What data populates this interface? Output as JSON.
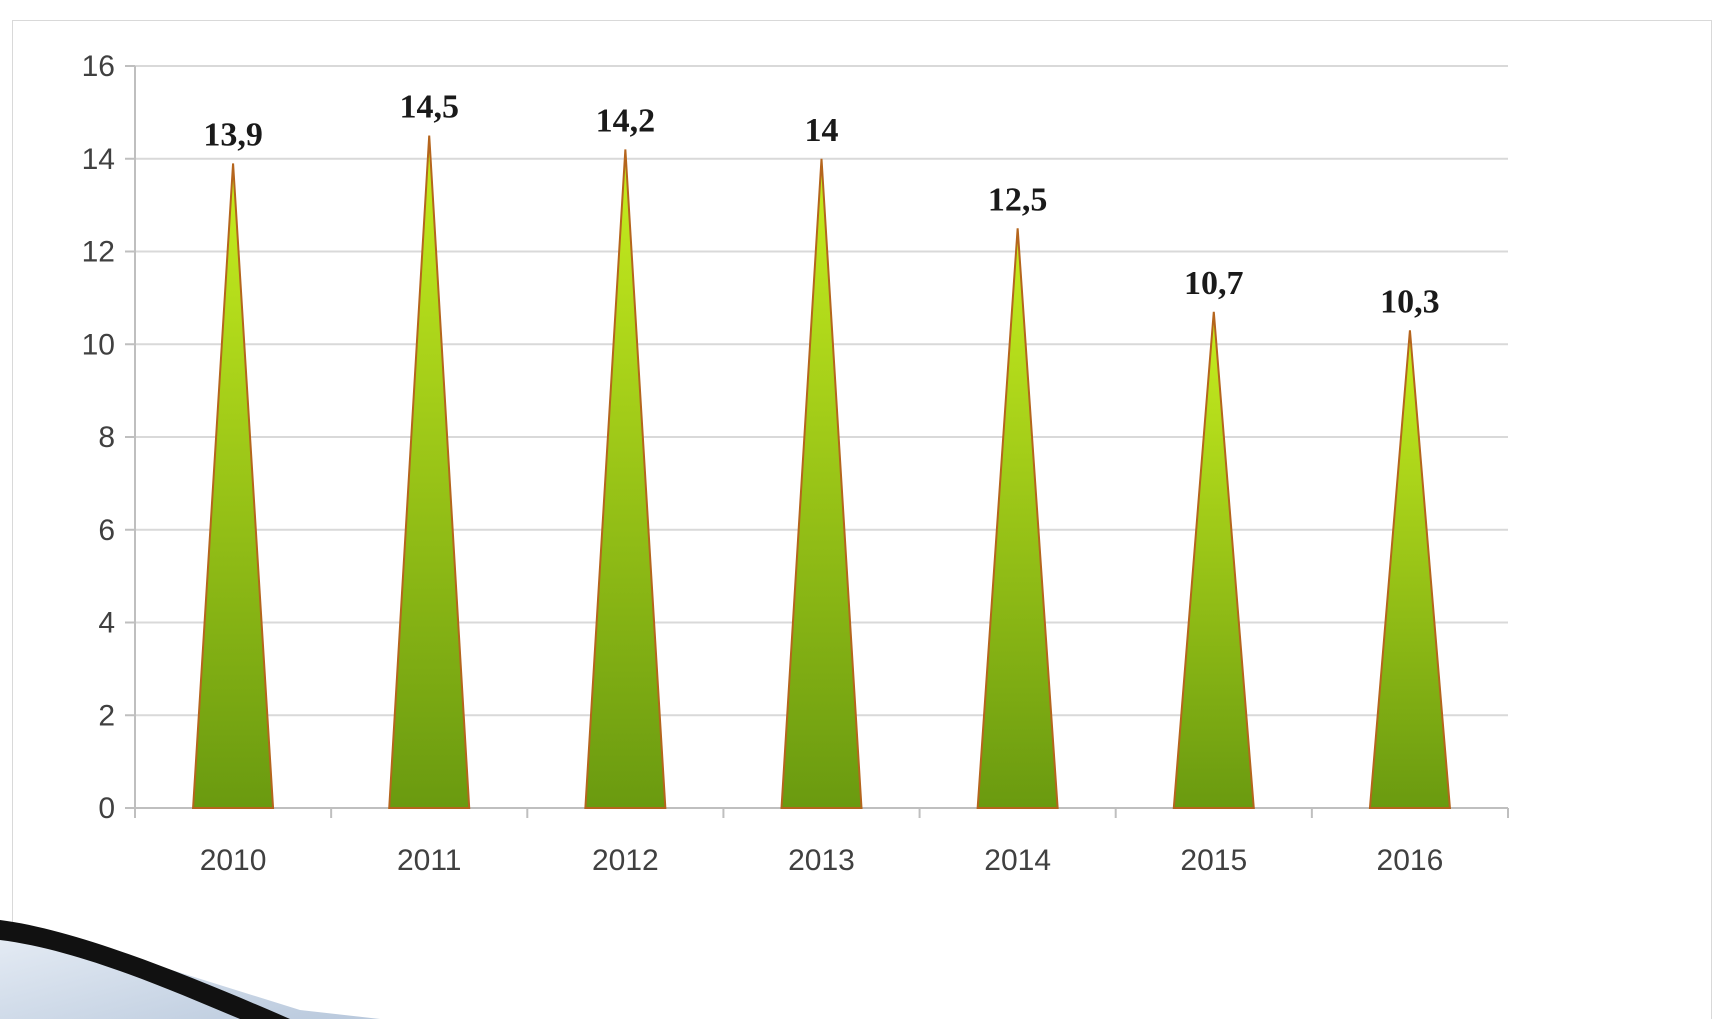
{
  "colors": {
    "cone_top": "#c8ee1e",
    "cone_bottom": "#6a9a10",
    "cone_edge": "#b5651d",
    "gridline": "#d9d9d9",
    "axis": "#bfbfbf"
  },
  "chart_data": {
    "type": "bar",
    "shape": "cone",
    "title": "",
    "xlabel": "",
    "ylabel": "",
    "categories": [
      "2010",
      "2011",
      "2012",
      "2013",
      "2014",
      "2015",
      "2016"
    ],
    "values": [
      13.9,
      14.5,
      14.2,
      14,
      12.5,
      10.7,
      10.3
    ],
    "data_labels": [
      "13,9",
      "14,5",
      "14,2",
      "14",
      "12,5",
      "10,7",
      "10,3"
    ],
    "ylim": [
      0,
      16
    ],
    "yticks": [
      0,
      2,
      4,
      6,
      8,
      10,
      12,
      14,
      16
    ],
    "grid": true,
    "legend": "none"
  }
}
